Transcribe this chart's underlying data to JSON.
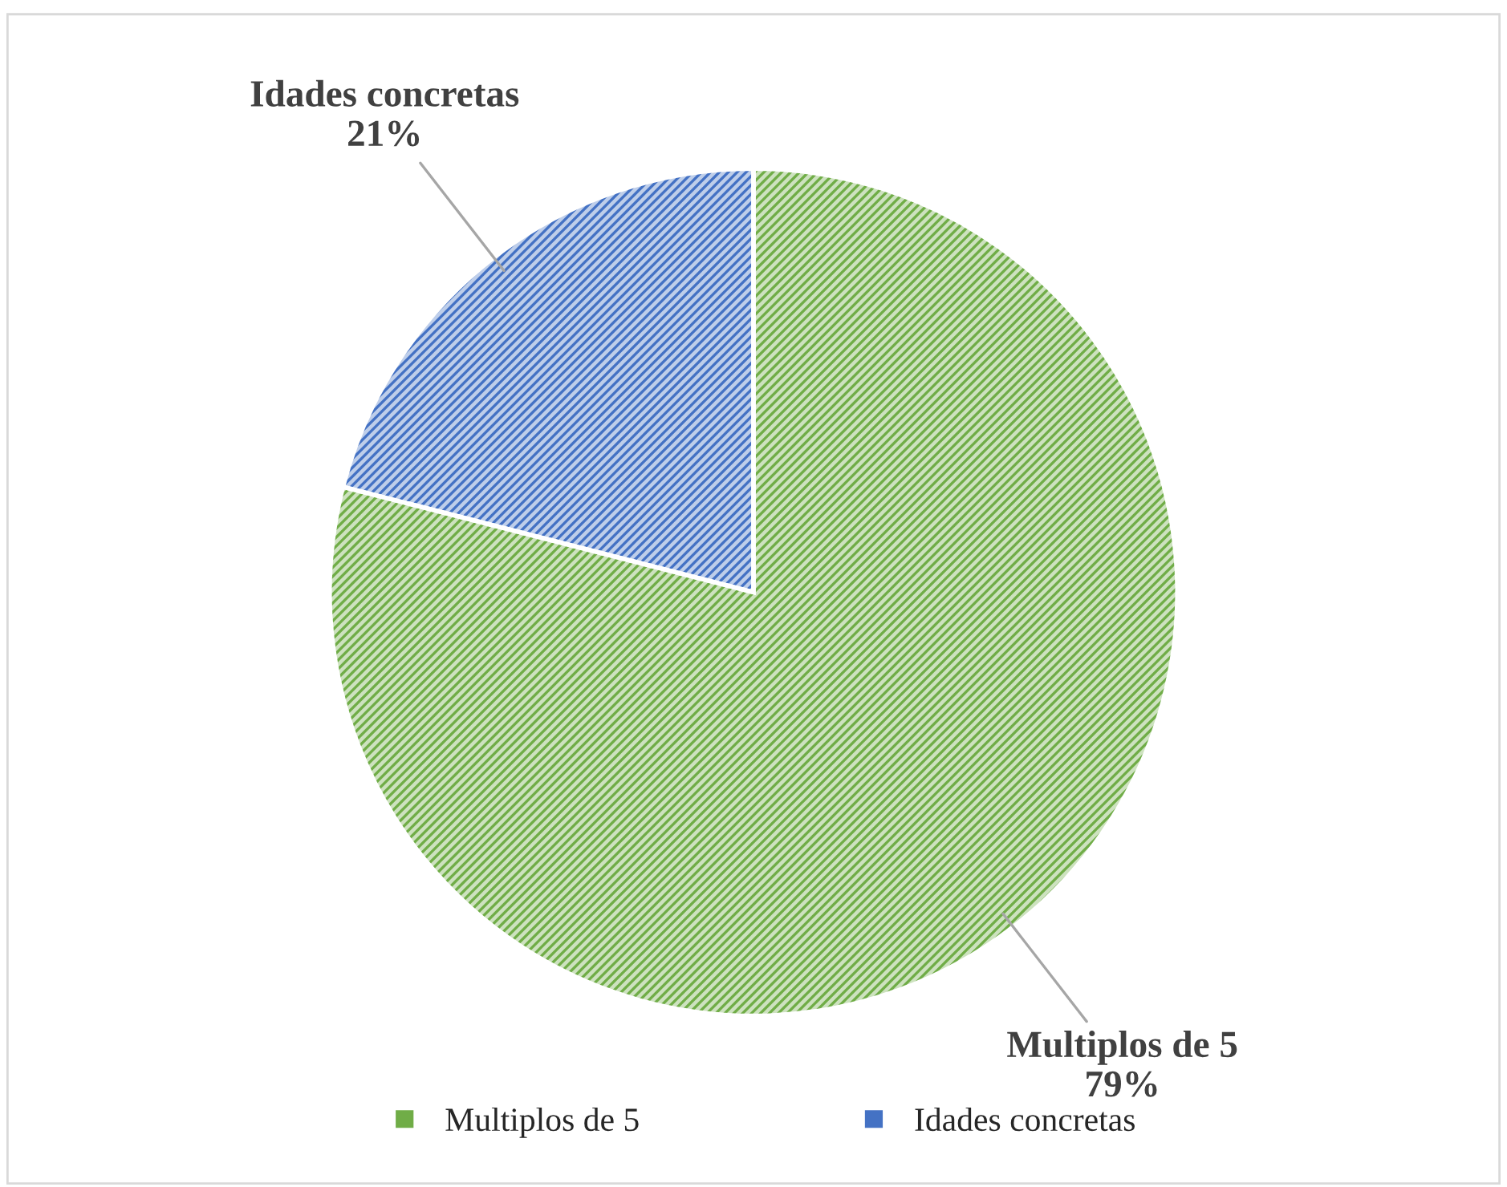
{
  "chart_data": {
    "type": "pie",
    "categories": [
      "Multiplos de 5",
      "Idades concretas"
    ],
    "values": [
      79,
      21
    ],
    "colors": [
      "#70ad47",
      "#4472c4"
    ],
    "value_labels": [
      "79%",
      "21%"
    ],
    "legend": "bottom"
  }
}
